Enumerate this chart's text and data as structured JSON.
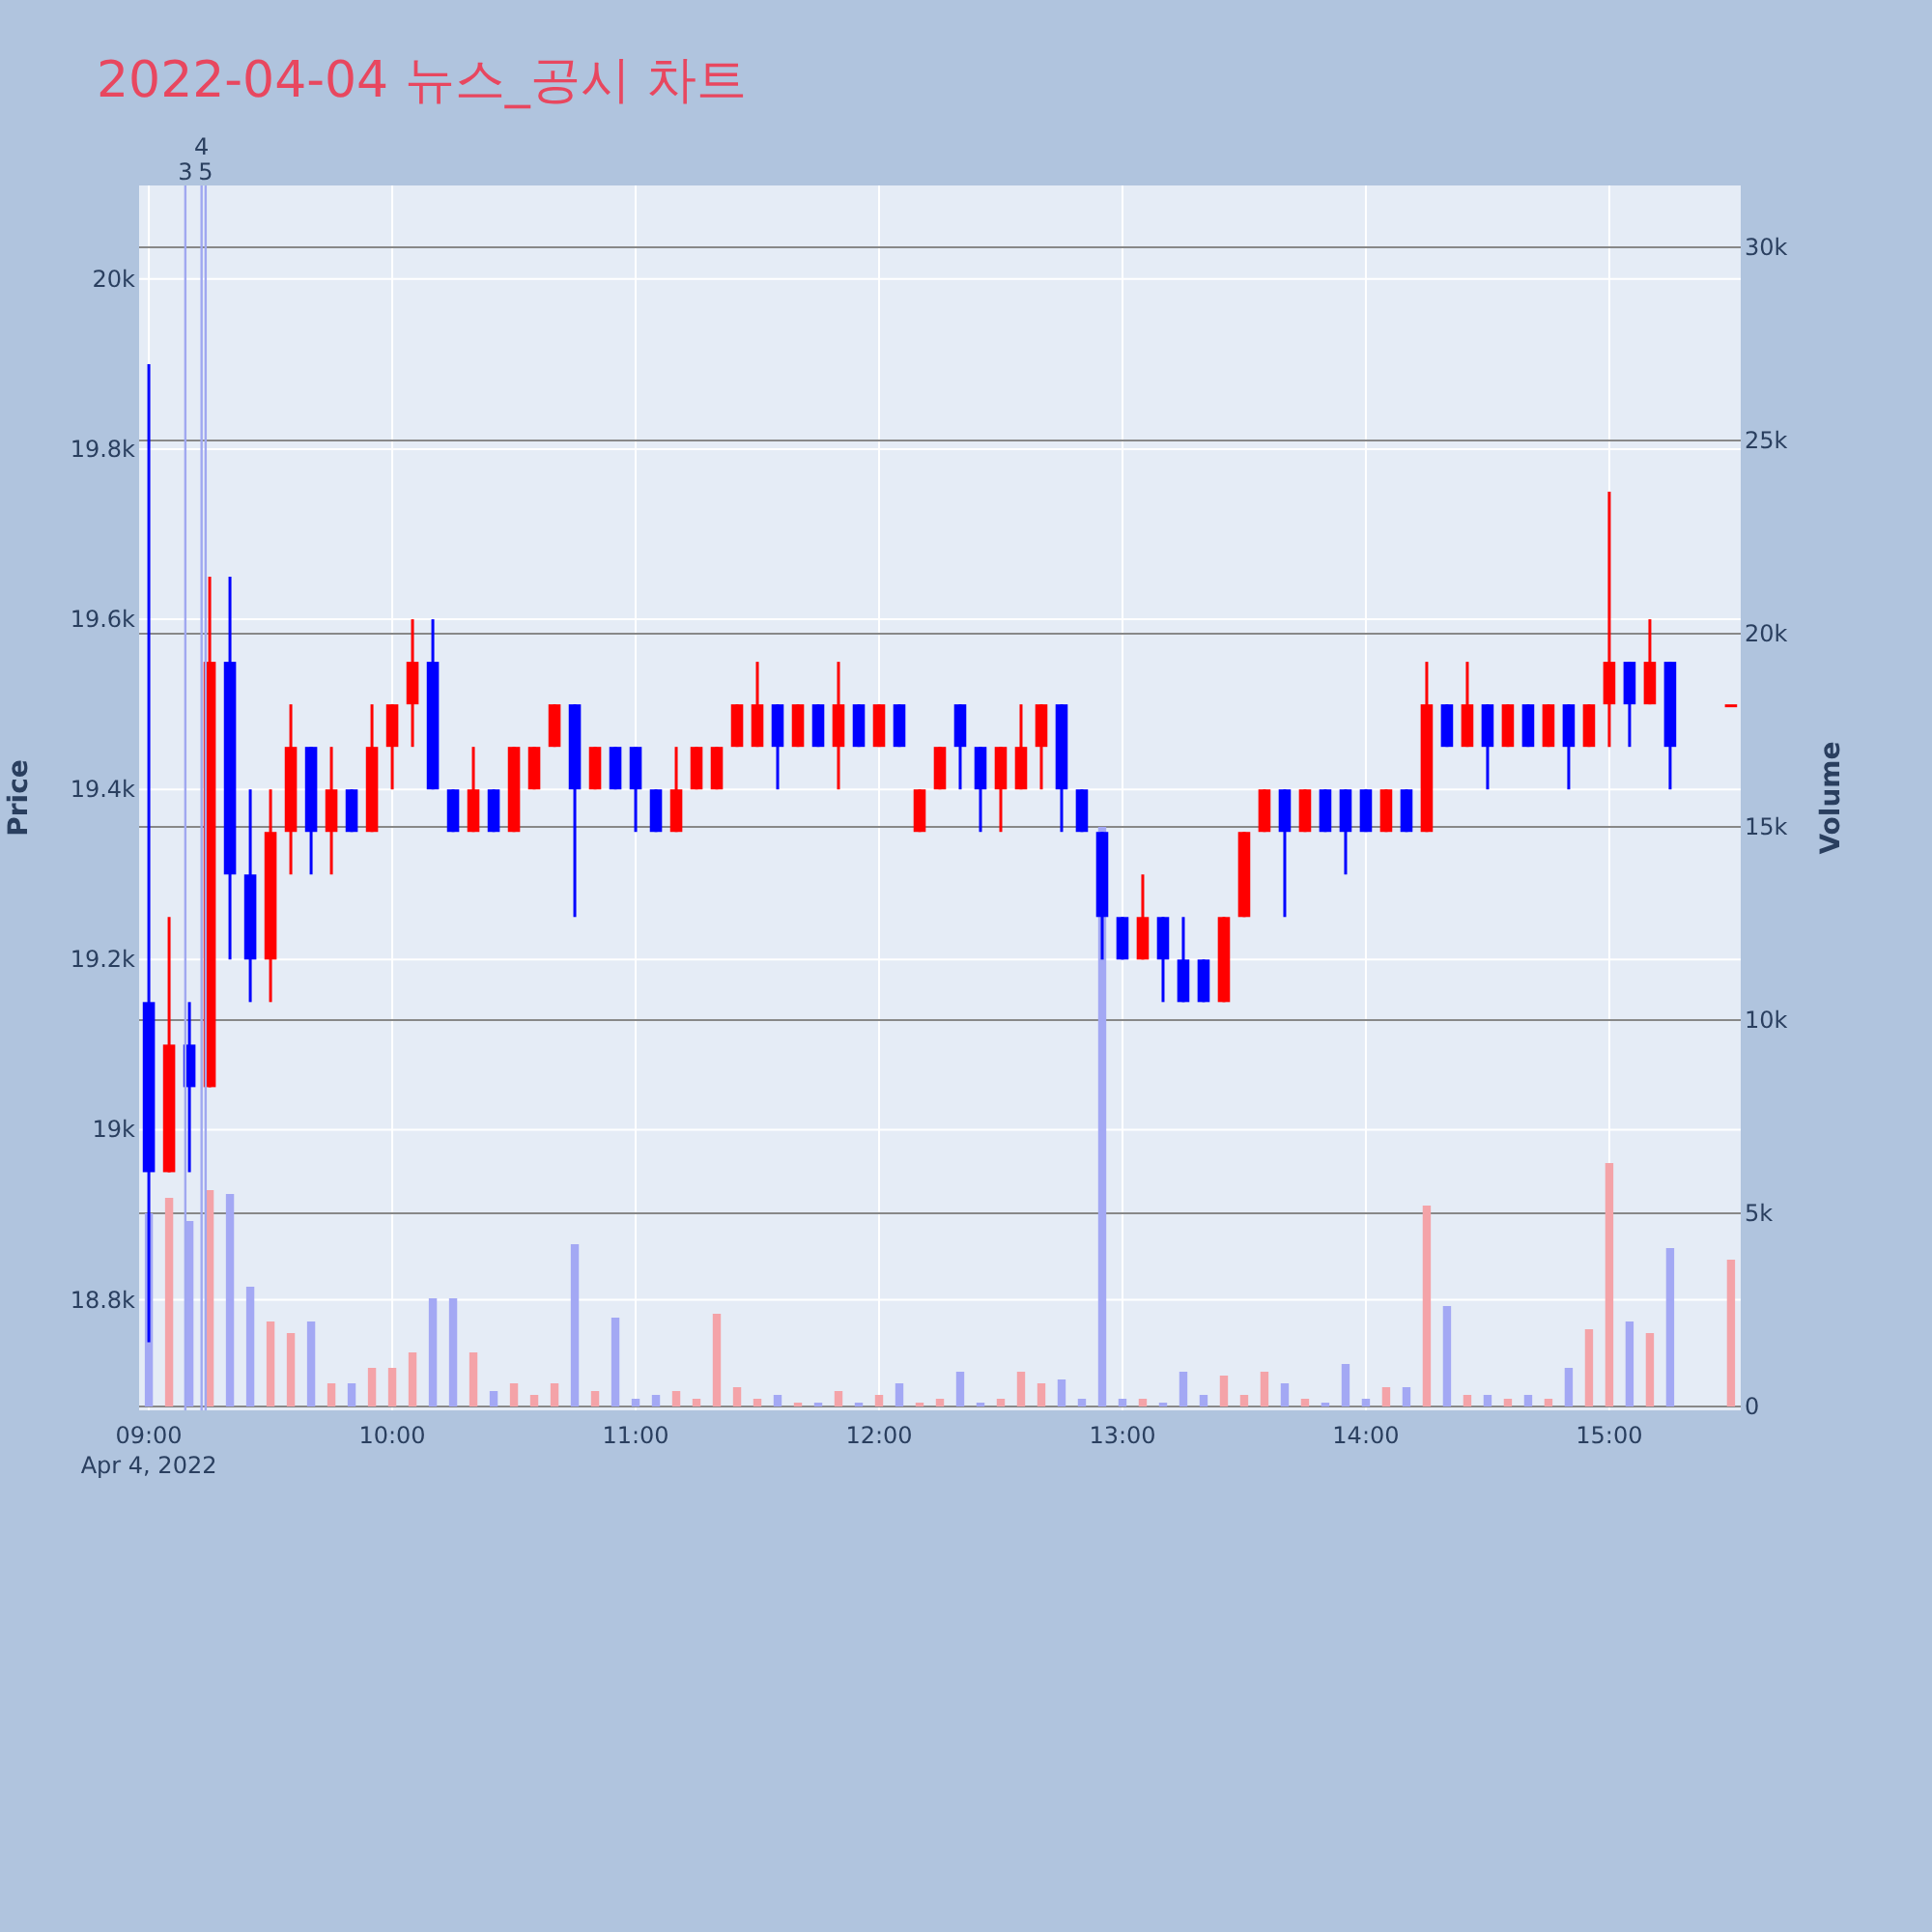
{
  "chart_data": {
    "type": "candlestick",
    "title": "2022-04-04 뉴스_공시 차트",
    "ylabel": "Price",
    "y2label": "Volume",
    "grid": true,
    "x": [
      9,
      9.0833,
      9.1667,
      9.25,
      9.3333,
      9.4167,
      9.5,
      9.5833,
      9.6667,
      9.75,
      9.8333,
      9.9167,
      10,
      10.0833,
      10.1667,
      10.25,
      10.3333,
      10.4167,
      10.5,
      10.5833,
      10.6667,
      10.75,
      10.8333,
      10.9167,
      11,
      11.0833,
      11.1667,
      11.25,
      11.3333,
      11.4167,
      11.5,
      11.5833,
      11.6667,
      11.75,
      11.8333,
      11.9167,
      12,
      12.0833,
      12.1667,
      12.25,
      12.3333,
      12.4167,
      12.5,
      12.5833,
      12.6667,
      12.75,
      12.8333,
      12.9167,
      13,
      13.0833,
      13.1667,
      13.25,
      13.3333,
      13.4167,
      13.5,
      13.5833,
      13.6667,
      13.75,
      13.8333,
      13.9167,
      14,
      14.0833,
      14.1667,
      14.25,
      14.3333,
      14.4167,
      14.5,
      14.5833,
      14.6667,
      14.75,
      14.8333,
      14.9167,
      15,
      15.0833,
      15.1667,
      15.25,
      15.5
    ],
    "series": [
      {
        "type": "bar",
        "axis": "y2",
        "values": [
          5000,
          5400,
          4800,
          5600,
          5500,
          3100,
          2200,
          1900,
          2200,
          600,
          600,
          1000,
          1000,
          1400,
          2800,
          2800,
          1400,
          400,
          600,
          300,
          600,
          4200,
          400,
          2300,
          200,
          300,
          400,
          200,
          2400,
          500,
          200,
          300,
          100,
          100,
          400,
          100,
          300,
          600,
          100,
          200,
          900,
          100,
          200,
          900,
          600,
          700,
          200,
          15000,
          200,
          200,
          100,
          900,
          300,
          800,
          300,
          900,
          600,
          200,
          100,
          1100,
          200,
          500,
          500,
          5200,
          2600,
          300,
          300,
          200,
          300,
          200,
          1000,
          2000,
          6300,
          2200,
          1900,
          4100,
          3800
        ],
        "colors": [
          "#a3a8f4",
          "#f4a3a8",
          "#a3a8f4",
          "#f4a3a8",
          "#a3a8f4",
          "#a3a8f4",
          "#f4a3a8",
          "#f4a3a8",
          "#a3a8f4",
          "#f4a3a8",
          "#a3a8f4",
          "#f4a3a8",
          "#f4a3a8",
          "#f4a3a8",
          "#a3a8f4",
          "#a3a8f4",
          "#f4a3a8",
          "#a3a8f4",
          "#f4a3a8",
          "#f4a3a8",
          "#f4a3a8",
          "#a3a8f4",
          "#f4a3a8",
          "#a3a8f4",
          "#a3a8f4",
          "#a3a8f4",
          "#f4a3a8",
          "#f4a3a8",
          "#f4a3a8",
          "#f4a3a8",
          "#f4a3a8",
          "#a3a8f4",
          "#f4a3a8",
          "#a3a8f4",
          "#f4a3a8",
          "#a3a8f4",
          "#f4a3a8",
          "#a3a8f4",
          "#f4a3a8",
          "#f4a3a8",
          "#a3a8f4",
          "#a3a8f4",
          "#f4a3a8",
          "#f4a3a8",
          "#f4a3a8",
          "#a3a8f4",
          "#a3a8f4",
          "#a3a8f4",
          "#a3a8f4",
          "#f4a3a8",
          "#a3a8f4",
          "#a3a8f4",
          "#a3a8f4",
          "#f4a3a8",
          "#f4a3a8",
          "#f4a3a8",
          "#a3a8f4",
          "#f4a3a8",
          "#a3a8f4",
          "#a3a8f4",
          "#a3a8f4",
          "#f4a3a8",
          "#a3a8f4",
          "#f4a3a8",
          "#a3a8f4",
          "#f4a3a8",
          "#a3a8f4",
          "#f4a3a8",
          "#a3a8f4",
          "#f4a3a8",
          "#a3a8f4",
          "#f4a3a8",
          "#f4a3a8",
          "#a3a8f4",
          "#f4a3a8",
          "#a3a8f4",
          "#f4a3a8"
        ]
      },
      {
        "ohlc": [
          [
            19150,
            19900,
            18750,
            18950
          ],
          [
            18950,
            19250,
            18950,
            19100
          ],
          [
            19100,
            19150,
            18950,
            19050
          ],
          [
            19050,
            19650,
            19050,
            19550
          ],
          [
            19550,
            19650,
            19200,
            19300
          ],
          [
            19300,
            19400,
            19150,
            19200
          ],
          [
            19200,
            19400,
            19150,
            19350
          ],
          [
            19350,
            19500,
            19300,
            19450
          ],
          [
            19450,
            19450,
            19300,
            19350
          ],
          [
            19350,
            19450,
            19300,
            19400
          ],
          [
            19400,
            19400,
            19350,
            19350
          ],
          [
            19350,
            19500,
            19350,
            19450
          ],
          [
            19450,
            19500,
            19400,
            19500
          ],
          [
            19500,
            19600,
            19450,
            19550
          ],
          [
            19550,
            19600,
            19400,
            19400
          ],
          [
            19400,
            19400,
            19350,
            19350
          ],
          [
            19350,
            19450,
            19350,
            19400
          ],
          [
            19400,
            19400,
            19350,
            19350
          ],
          [
            19350,
            19450,
            19350,
            19450
          ],
          [
            19400,
            19450,
            19400,
            19450
          ],
          [
            19450,
            19500,
            19450,
            19500
          ],
          [
            19500,
            19500,
            19250,
            19400
          ],
          [
            19400,
            19450,
            19400,
            19450
          ],
          [
            19450,
            19450,
            19400,
            19400
          ],
          [
            19450,
            19450,
            19350,
            19400
          ],
          [
            19400,
            19400,
            19350,
            19350
          ],
          [
            19350,
            19450,
            19350,
            19400
          ],
          [
            19400,
            19450,
            19400,
            19450
          ],
          [
            19400,
            19450,
            19400,
            19450
          ],
          [
            19450,
            19500,
            19450,
            19500
          ],
          [
            19450,
            19550,
            19450,
            19500
          ],
          [
            19500,
            19500,
            19400,
            19450
          ],
          [
            19450,
            19500,
            19450,
            19500
          ],
          [
            19500,
            19500,
            19450,
            19450
          ],
          [
            19450,
            19550,
            19400,
            19500
          ],
          [
            19500,
            19500,
            19450,
            19450
          ],
          [
            19450,
            19500,
            19450,
            19500
          ],
          [
            19500,
            19500,
            19450,
            19450
          ],
          [
            19350,
            19400,
            19350,
            19400
          ],
          [
            19400,
            19450,
            19400,
            19450
          ],
          [
            19500,
            19500,
            19400,
            19450
          ],
          [
            19450,
            19450,
            19350,
            19400
          ],
          [
            19400,
            19450,
            19350,
            19450
          ],
          [
            19400,
            19500,
            19400,
            19450
          ],
          [
            19450,
            19500,
            19400,
            19500
          ],
          [
            19500,
            19500,
            19350,
            19400
          ],
          [
            19400,
            19400,
            19350,
            19350
          ],
          [
            19350,
            19350,
            19200,
            19250
          ],
          [
            19250,
            19250,
            19200,
            19200
          ],
          [
            19200,
            19300,
            19200,
            19250
          ],
          [
            19250,
            19250,
            19150,
            19200
          ],
          [
            19200,
            19250,
            19150,
            19150
          ],
          [
            19200,
            19200,
            19150,
            19150
          ],
          [
            19150,
            19250,
            19150,
            19250
          ],
          [
            19250,
            19350,
            19250,
            19350
          ],
          [
            19350,
            19400,
            19350,
            19400
          ],
          [
            19400,
            19400,
            19250,
            19350
          ],
          [
            19350,
            19400,
            19350,
            19400
          ],
          [
            19400,
            19400,
            19350,
            19350
          ],
          [
            19400,
            19400,
            19300,
            19350
          ],
          [
            19400,
            19400,
            19350,
            19350
          ],
          [
            19350,
            19400,
            19350,
            19400
          ],
          [
            19400,
            19400,
            19350,
            19350
          ],
          [
            19350,
            19550,
            19350,
            19500
          ],
          [
            19500,
            19500,
            19450,
            19450
          ],
          [
            19450,
            19550,
            19450,
            19500
          ],
          [
            19500,
            19500,
            19400,
            19450
          ],
          [
            19450,
            19500,
            19450,
            19500
          ],
          [
            19500,
            19500,
            19450,
            19450
          ],
          [
            19450,
            19500,
            19450,
            19500
          ],
          [
            19500,
            19500,
            19400,
            19450
          ],
          [
            19450,
            19500,
            19450,
            19500
          ],
          [
            19500,
            19750,
            19450,
            19550
          ],
          [
            19550,
            19550,
            19450,
            19500
          ],
          [
            19500,
            19600,
            19500,
            19550
          ],
          [
            19550,
            19550,
            19400,
            19450
          ],
          [
            19500,
            19500,
            19500,
            19500
          ]
        ],
        "colors": [
          "#0000ff",
          "#ff0000",
          "#0000ff",
          "#ff0000",
          "#0000ff",
          "#0000ff",
          "#ff0000",
          "#ff0000",
          "#0000ff",
          "#ff0000",
          "#0000ff",
          "#ff0000",
          "#ff0000",
          "#ff0000",
          "#0000ff",
          "#0000ff",
          "#ff0000",
          "#0000ff",
          "#ff0000",
          "#ff0000",
          "#ff0000",
          "#0000ff",
          "#ff0000",
          "#0000ff",
          "#0000ff",
          "#0000ff",
          "#ff0000",
          "#ff0000",
          "#ff0000",
          "#ff0000",
          "#ff0000",
          "#0000ff",
          "#ff0000",
          "#0000ff",
          "#ff0000",
          "#0000ff",
          "#ff0000",
          "#0000ff",
          "#ff0000",
          "#ff0000",
          "#0000ff",
          "#0000ff",
          "#ff0000",
          "#ff0000",
          "#ff0000",
          "#0000ff",
          "#0000ff",
          "#0000ff",
          "#0000ff",
          "#ff0000",
          "#0000ff",
          "#0000ff",
          "#0000ff",
          "#ff0000",
          "#ff0000",
          "#ff0000",
          "#0000ff",
          "#ff0000",
          "#0000ff",
          "#0000ff",
          "#0000ff",
          "#ff0000",
          "#0000ff",
          "#ff0000",
          "#0000ff",
          "#ff0000",
          "#0000ff",
          "#ff0000",
          "#0000ff",
          "#ff0000",
          "#0000ff",
          "#ff0000",
          "#ff0000",
          "#0000ff",
          "#ff0000",
          "#0000ff",
          "#ff0000"
        ]
      }
    ],
    "xlim": [
      8.96,
      15.54
    ],
    "xticks": [
      {
        "value": 9,
        "label": "09:00\nApr 4, 2022"
      },
      {
        "value": 10,
        "label": "10:00"
      },
      {
        "value": 11,
        "label": "11:00"
      },
      {
        "value": 12,
        "label": "12:00"
      },
      {
        "value": 13,
        "label": "13:00"
      },
      {
        "value": 14,
        "label": "14:00"
      },
      {
        "value": 15,
        "label": "15:00"
      }
    ],
    "ylim": [
      18670,
      20110
    ],
    "yticks": [
      {
        "value": 18800,
        "label": "18.8k"
      },
      {
        "value": 19000,
        "label": "19k"
      },
      {
        "value": 19200,
        "label": "19.2k"
      },
      {
        "value": 19400,
        "label": "19.4k"
      },
      {
        "value": 19600,
        "label": "19.6k"
      },
      {
        "value": 19800,
        "label": "19.8k"
      },
      {
        "value": 20000,
        "label": "20k"
      }
    ],
    "y2lim": [
      -100,
      31600
    ],
    "y2ticks": [
      0,
      {
        "value": 5000,
        "label": "5k"
      },
      {
        "value": 10000,
        "label": "10k"
      },
      {
        "value": 15000,
        "label": "15k"
      },
      {
        "value": 20000,
        "label": "20k"
      },
      {
        "value": 25000,
        "label": "25k"
      },
      {
        "value": 30000,
        "label": "30k"
      }
    ],
    "ref_lines": [
      {
        "axis": "x",
        "value": 9.15,
        "color": "#a0a8f0"
      },
      {
        "axis": "x",
        "value": 9.2167,
        "color": "#a0a8f0"
      },
      {
        "axis": "x",
        "value": 9.2333,
        "color": "#a0a8f0"
      }
    ],
    "annotations": [
      "3",
      "4",
      "5"
    ]
  }
}
